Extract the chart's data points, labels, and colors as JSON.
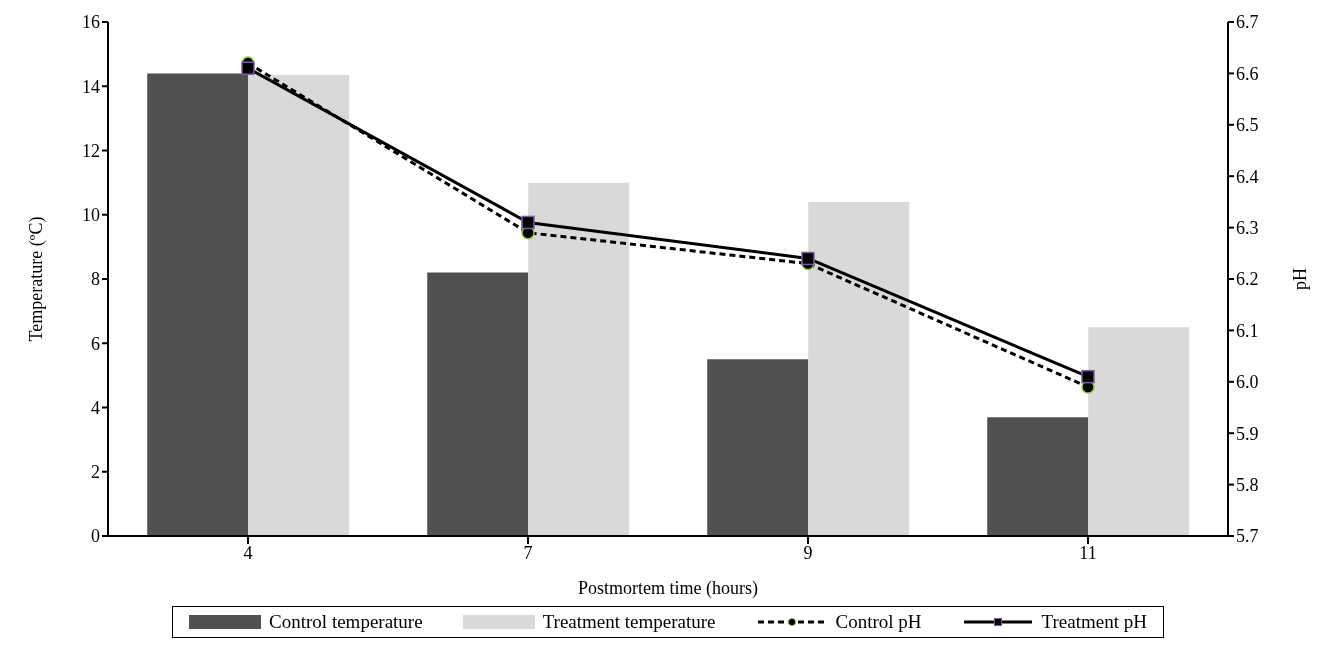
{
  "chart_data": {
    "type": "bar",
    "xlabel": "Postmortem time (hours)",
    "ylabel": "Temperature (ºC)",
    "y2label": "pH",
    "categories": [
      "4",
      "7",
      "9",
      "11"
    ],
    "series": [
      {
        "name": "Control temperature",
        "color": "#505050",
        "values": [
          14.4,
          8.2,
          5.5,
          3.7
        ]
      },
      {
        "name": "Treatment temperature",
        "color": "#d9d9d9",
        "values": [
          14.35,
          11.0,
          10.4,
          6.5
        ]
      },
      {
        "name": "Control pH",
        "type": "line",
        "axis": "y2",
        "color": "#000000",
        "marker": "circle",
        "line_style": "dashed",
        "values": [
          6.62,
          6.29,
          6.23,
          5.99
        ]
      },
      {
        "name": "Treatment pH",
        "type": "line",
        "axis": "y2",
        "color": "#000000",
        "marker": "square",
        "line_style": "solid",
        "values": [
          6.61,
          6.31,
          6.24,
          6.01
        ]
      }
    ],
    "ylim": [
      0,
      16
    ],
    "yticks": [
      0,
      2,
      4,
      6,
      8,
      10,
      12,
      14,
      16
    ],
    "y2lim": [
      5.7,
      6.7
    ],
    "y2ticks": [
      5.7,
      5.8,
      5.9,
      {
        "value": 6.0,
        "label": "6.0"
      },
      6.1,
      6.2,
      6.3,
      6.4,
      6.5,
      6.6,
      6.7
    ],
    "legend": "bottom"
  }
}
